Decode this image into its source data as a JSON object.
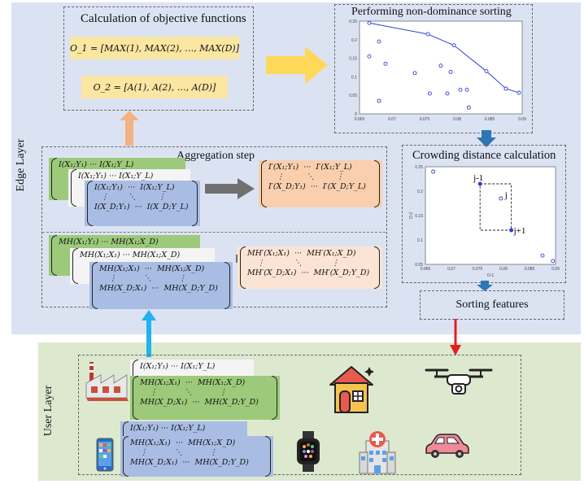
{
  "layers": {
    "edge": "Edge Layer",
    "user": "User Layer"
  },
  "objective_functions": {
    "title": "Calculation of objective functions",
    "o1": "O_1 = [MAX(1), MAX(2), …, MAX(D)]",
    "o2": "O_2 = [A(1), A(2), …, A(D)]"
  },
  "nondominance": {
    "title": "Performing non-dominance sorting",
    "chart_data": {
      "type": "scatter",
      "xlim": [
        0.065,
        0.09
      ],
      "ylim": [
        0,
        0.25
      ],
      "x_ticks": [
        "0.065",
        "0.07",
        "0.075",
        "0.08",
        "0.085",
        "0.09"
      ],
      "y_ticks": [
        "0",
        "0.05",
        "0.1",
        "0.15",
        "0.2",
        "0.25"
      ],
      "front": [
        [
          0.0665,
          0.245
        ],
        [
          0.0755,
          0.215
        ],
        [
          0.0795,
          0.185
        ],
        [
          0.0845,
          0.115
        ],
        [
          0.0875,
          0.068
        ],
        [
          0.0895,
          0.057
        ]
      ],
      "points": [
        [
          0.0665,
          0.155
        ],
        [
          0.068,
          0.195
        ],
        [
          0.068,
          0.035
        ],
        [
          0.069,
          0.135
        ],
        [
          0.0735,
          0.11
        ],
        [
          0.0758,
          0.055
        ],
        [
          0.0775,
          0.13
        ],
        [
          0.079,
          0.113
        ],
        [
          0.0785,
          0.055
        ],
        [
          0.0805,
          0.065
        ],
        [
          0.0815,
          0.065
        ],
        [
          0.0818,
          0.017
        ]
      ]
    }
  },
  "crowding": {
    "title": "Crowding distance calculation",
    "chart_data": {
      "type": "scatter",
      "xlim": [
        0.065,
        0.09
      ],
      "ylim": [
        0.05,
        0.25
      ],
      "x_ticks": [
        "0.065",
        "0.07",
        "0.075",
        "0.08",
        "0.085",
        "0.09"
      ],
      "y_ticks": [
        "0.05",
        "0.1",
        "0.15",
        "0.2",
        "0.25"
      ],
      "xlabel": "O-1",
      "ylabel": "O-2",
      "points": [
        [
          0.0665,
          0.24
        ],
        [
          0.0755,
          0.215
        ],
        [
          0.0795,
          0.185
        ],
        [
          0.0815,
          0.12
        ],
        [
          0.0875,
          0.068
        ],
        [
          0.0895,
          0.057
        ]
      ],
      "labels": {
        "prev": "j-1",
        "cur": "j",
        "next": "j+1"
      }
    }
  },
  "aggregation": {
    "title": "Aggregation step",
    "i_matrix": {
      "top": [
        "I(X₁;Y₁)",
        "···",
        "I(X₁;Y_L)"
      ],
      "mid": [
        "⋮",
        "⋱",
        "⋮"
      ],
      "bot": [
        "I(X_D;Y₁)",
        "···",
        "I(X_D;Y_L)"
      ]
    },
    "i_prime": {
      "top": [
        "I′(X₁;Y₁)",
        "···",
        "I′(X₁;Y_L)"
      ],
      "mid": [
        "⋮",
        "⋱",
        "⋮"
      ],
      "bot": [
        "I′(X_D;Y₁)",
        "···",
        "I′(X_D;Y_L)"
      ]
    },
    "mh_matrix": {
      "top": [
        "MH(X₁;X₁)",
        "···",
        "MH(X₁;X_D)"
      ],
      "mid": [
        "⋮",
        "⋱",
        "⋮"
      ],
      "bot": [
        "MH(X_D;X₁)",
        "···",
        "MH(X_D;Y_D)"
      ]
    },
    "mh_prime": {
      "top": [
        "MH′(X₁;X₁)",
        "···",
        "MH′(X₁;X_D)"
      ],
      "mid": [
        "⋮",
        "⋱",
        "⋮"
      ],
      "bot": [
        "MH′(X_D;X₁)",
        "···",
        "MH′(X_D;Y_D)"
      ]
    },
    "green_top": "I(X₁;Y₁)   ···   I(X₁;Y_L)",
    "white_top": "I(X₁;Y₁)   ···   I(X₁;Y_L)",
    "mh_green_top": "MH(X₁;Y₁)   ···   MH(X₁;X_D)",
    "mh_white_top": "MH(X₁;X₁)   ···   MH(X₁;X_D)"
  },
  "sorting": {
    "label": "Sorting features"
  },
  "user_devices": {
    "row1_matrix_top": "I(X₁;Y₁)   ···   I(X₁;Y_L)",
    "row2_matrix_top": "I(X₁;Y₁)   ···   I(X₁;Y_L)"
  },
  "colors": {
    "edge_bg": "#dbe3f3",
    "user_bg": "#dde9cf",
    "arrow_yellow": "#ffd85a",
    "arrow_orange": "#f4b183",
    "arrow_blue": "#2e75b6",
    "arrow_red": "#e02020",
    "arrow_cyan": "#22b2ee",
    "arrow_gray": "#707070"
  },
  "icons": [
    "factory-icon",
    "house-icon",
    "drone-icon",
    "phone-icon",
    "smartwatch-icon",
    "hospital-icon",
    "car-icon"
  ]
}
